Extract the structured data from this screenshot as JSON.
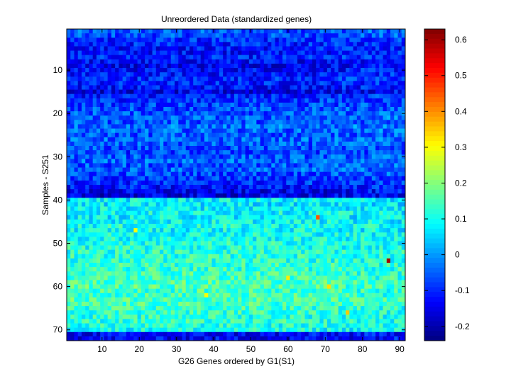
{
  "chart_data": {
    "type": "heatmap",
    "title": "Unreordered Data (standardized genes)",
    "xlabel": "G26 Genes ordered by G1(S1)",
    "ylabel": "Samples - S251",
    "rows": 72,
    "cols": 91,
    "x_ticks": [
      "10",
      "20",
      "30",
      "40",
      "50",
      "60",
      "70",
      "80",
      "90"
    ],
    "x_tick_values": [
      10,
      20,
      30,
      40,
      50,
      60,
      70,
      80,
      90
    ],
    "y_ticks": [
      "10",
      "20",
      "30",
      "40",
      "50",
      "60",
      "70"
    ],
    "y_tick_values": [
      10,
      20,
      30,
      40,
      50,
      60,
      70
    ],
    "colorbar": {
      "min": -0.24,
      "max": 0.63,
      "ticks": [
        "-0.2",
        "-0.1",
        "0",
        "0.1",
        "0.2",
        "0.3",
        "0.4",
        "0.5",
        "0.6"
      ],
      "tick_values": [
        -0.2,
        -0.1,
        0,
        0.1,
        0.2,
        0.3,
        0.4,
        0.5,
        0.6
      ],
      "colormap": "jet"
    },
    "row_means": [
      -0.06,
      -0.07,
      -0.1,
      -0.11,
      -0.12,
      -0.12,
      -0.11,
      -0.13,
      -0.14,
      -0.13,
      -0.12,
      -0.1,
      -0.11,
      -0.12,
      -0.16,
      -0.11,
      -0.09,
      -0.08,
      -0.07,
      -0.06,
      -0.05,
      -0.06,
      -0.04,
      -0.05,
      -0.06,
      -0.05,
      -0.06,
      -0.07,
      -0.08,
      -0.06,
      -0.05,
      -0.06,
      -0.05,
      -0.07,
      -0.09,
      -0.1,
      -0.12,
      -0.15,
      -0.16,
      0.08,
      0.07,
      0.08,
      0.09,
      0.08,
      0.09,
      0.1,
      0.09,
      0.1,
      0.1,
      0.11,
      0.11,
      0.12,
      0.12,
      0.12,
      0.13,
      0.13,
      0.14,
      0.14,
      0.15,
      0.15,
      0.14,
      0.14,
      0.15,
      0.14,
      0.13,
      0.13,
      0.12,
      0.12,
      0.11,
      0.1,
      -0.14,
      -0.14
    ],
    "noise_amplitude": 0.07,
    "highlights": [
      {
        "row": 44,
        "col": 68,
        "value": 0.45
      },
      {
        "row": 54,
        "col": 87,
        "value": 0.6
      },
      {
        "row": 66,
        "col": 76,
        "value": 0.35
      },
      {
        "row": 58,
        "col": 60,
        "value": 0.32
      },
      {
        "row": 60,
        "col": 71,
        "value": 0.33
      },
      {
        "row": 47,
        "col": 19,
        "value": 0.3
      },
      {
        "row": 62,
        "col": 38,
        "value": 0.3
      }
    ]
  }
}
